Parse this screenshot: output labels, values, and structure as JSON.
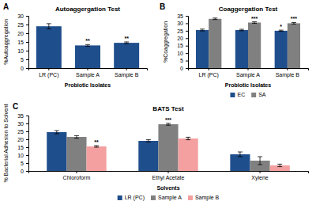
{
  "chart_data": [
    {
      "type": "bar",
      "title": "Autoaggergation Test",
      "xlabel": "Probiotic Isolates",
      "ylabel": "%Autoaggregation",
      "annotations": [
        "A"
      ],
      "categories": [
        "LR (PC)",
        "Sample A",
        "Sample B"
      ],
      "values": [
        24.0,
        13.0,
        14.5
      ],
      "errors": [
        1.5,
        0.5,
        0.5
      ],
      "significance": [
        null,
        "**",
        "**"
      ],
      "color": "#1f4e8c",
      "ylim": [
        0,
        30
      ],
      "yticks": [
        0,
        5,
        10,
        15,
        20,
        25,
        30
      ],
      "grid": false
    },
    {
      "type": "bar",
      "title": "Coaggergation Test",
      "xlabel": "Probiotic Isolates",
      "ylabel": "%Coaggregation",
      "annotations": [
        "B"
      ],
      "categories": [
        "LR (PC)",
        "Sample A",
        "Sample B"
      ],
      "series": [
        {
          "name": "EC",
          "color": "#1f4e8c",
          "values": [
            25.5,
            25.5,
            25.0
          ],
          "errors": [
            0.6,
            0.5,
            0.4
          ],
          "significance": [
            null,
            null,
            "*"
          ]
        },
        {
          "name": "SA",
          "color": "#808080",
          "values": [
            33.0,
            30.5,
            30.0
          ],
          "errors": [
            0.5,
            0.5,
            0.5
          ],
          "significance": [
            null,
            "***",
            "***"
          ]
        }
      ],
      "ylim": [
        0,
        35
      ],
      "yticks": [
        0,
        5,
        10,
        15,
        20,
        25,
        30,
        35
      ],
      "grid": false,
      "legend": "bottom"
    },
    {
      "type": "bar",
      "title": "BATS Test",
      "xlabel": "Solvents",
      "ylabel": "% Bacterial Adhesion to Solvent",
      "annotations": [
        "C"
      ],
      "categories": [
        "Chloroform",
        "Ethyl Acetate",
        "Xylene"
      ],
      "series": [
        {
          "name": "LR (PC)",
          "color": "#1f4e8c",
          "values": [
            24.5,
            19.0,
            10.5
          ],
          "errors": [
            1.0,
            0.7,
            1.5
          ],
          "significance": [
            null,
            null,
            null
          ]
        },
        {
          "name": "Sample A",
          "color": "#808080",
          "values": [
            21.5,
            29.5,
            6.5
          ],
          "errors": [
            0.8,
            0.6,
            2.5
          ],
          "significance": [
            null,
            "***",
            null
          ]
        },
        {
          "name": "Sample B",
          "color": "#f4a0a0",
          "values": [
            15.5,
            20.5,
            3.5
          ],
          "errors": [
            0.5,
            0.8,
            0.8
          ],
          "significance": [
            "**",
            null,
            null
          ]
        }
      ],
      "ylim": [
        0,
        35
      ],
      "yticks": [
        0,
        5,
        10,
        15,
        20,
        25,
        30,
        35
      ],
      "grid": false,
      "legend": "bottom"
    }
  ]
}
